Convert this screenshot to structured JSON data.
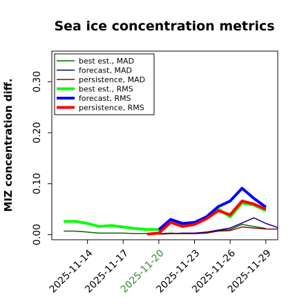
{
  "chart_data": {
    "type": "line",
    "title": "Sea ice concentration metrics",
    "ylabel": "MIZ concentration diff.",
    "xlabel": "",
    "x": [
      "2025-11-12",
      "2025-11-13",
      "2025-11-14",
      "2025-11-15",
      "2025-11-16",
      "2025-11-17",
      "2025-11-18",
      "2025-11-19",
      "2025-11-20",
      "2025-11-21",
      "2025-11-22",
      "2025-11-23",
      "2025-11-24",
      "2025-11-25",
      "2025-11-26",
      "2025-11-27",
      "2025-11-28",
      "2025-11-29",
      "2025-11-30"
    ],
    "xticks": [
      "2025-11-14",
      "2025-11-17",
      "2025-11-20",
      "2025-11-23",
      "2025-11-26",
      "2025-11-29"
    ],
    "highlight_tick": "2025-11-20",
    "xlim": [
      "2025-11-11",
      "2025-11-30"
    ],
    "ylim": [
      -0.01,
      0.36
    ],
    "yticks": [
      "0.00",
      "0.10",
      "0.20",
      "0.30"
    ],
    "legend_position": "upper-left",
    "grid": false,
    "series": [
      {
        "name": "best est., MAD",
        "color": "#006400",
        "width": 1.5,
        "values": [
          0.007,
          0.007,
          0.005,
          0.003,
          0.003,
          0.003,
          0.002,
          0.002,
          0.002,
          0.003,
          0.002,
          0.002,
          0.003,
          0.008,
          0.01,
          0.02,
          0.016,
          0.012,
          null
        ]
      },
      {
        "name": "forecast, MAD",
        "color": "#00008b",
        "width": 1.5,
        "values": [
          null,
          null,
          null,
          null,
          null,
          null,
          null,
          null,
          0.001,
          0.002,
          0.003,
          0.003,
          0.005,
          0.009,
          0.013,
          0.023,
          0.033,
          0.022,
          0.014
        ]
      },
      {
        "name": "persistence, MAD",
        "color": "#8b0000",
        "width": 1.5,
        "values": [
          null,
          null,
          null,
          null,
          null,
          null,
          null,
          null,
          0.001,
          0.002,
          0.002,
          0.002,
          0.003,
          0.007,
          0.008,
          0.015,
          0.013,
          0.011,
          0.011
        ]
      },
      {
        "name": "best est., RMS",
        "color": "#00ff00",
        "width": 4,
        "values": [
          0.026,
          0.026,
          0.022,
          0.016,
          0.018,
          0.015,
          0.012,
          0.01,
          0.01,
          0.027,
          0.02,
          0.022,
          0.033,
          0.05,
          0.035,
          0.062,
          0.058,
          0.047,
          null
        ]
      },
      {
        "name": "forecast, RMS",
        "color": "#0000ff",
        "width": 4,
        "values": [
          null,
          null,
          null,
          null,
          null,
          null,
          null,
          null,
          0.01,
          0.03,
          0.022,
          0.024,
          0.035,
          0.055,
          0.066,
          0.091,
          0.071,
          0.054,
          null
        ]
      },
      {
        "name": "persistence, RMS",
        "color": "#ff0000",
        "width": 4,
        "values": [
          null,
          null,
          null,
          null,
          null,
          null,
          null,
          0.001,
          0.003,
          0.024,
          0.016,
          0.02,
          0.031,
          0.047,
          0.039,
          0.066,
          0.06,
          0.05,
          null
        ]
      }
    ]
  },
  "colors": {
    "highlight_tick": "#2e8b2e",
    "axis": "#000000"
  }
}
